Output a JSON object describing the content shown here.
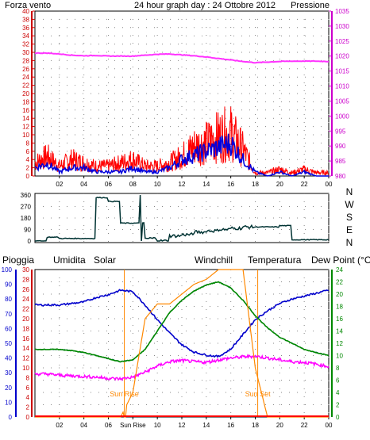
{
  "top_chart": {
    "title": "24 hour graph day : 24 Ottobre 2012",
    "left_label": "Forza vento",
    "right_label": "Pressione",
    "y_left_ticks": [
      "0",
      "2",
      "4",
      "6",
      "8",
      "10",
      "12",
      "14",
      "16",
      "18",
      "20",
      "22",
      "24",
      "26",
      "28",
      "30",
      "32",
      "34",
      "36",
      "38",
      "40"
    ],
    "y_right_ticks": [
      "980",
      "985",
      "990",
      "995",
      "1000",
      "1005",
      "1010",
      "1015",
      "1020",
      "1025",
      "1030",
      "1035"
    ],
    "x_ticks": [
      "02",
      "04",
      "06",
      "08",
      "10",
      "12",
      "14",
      "16",
      "18",
      "20",
      "22",
      "00"
    ]
  },
  "direction_chart": {
    "y_ticks": [
      "360",
      "270",
      "180",
      "90",
      "0"
    ],
    "compass": [
      "N",
      "W",
      "S",
      "E",
      "N"
    ]
  },
  "bottom_chart": {
    "legend": [
      "Pioggia",
      "Umidita",
      "Solar",
      "Windchill",
      "Temperatura",
      "Dew Point (°C)"
    ],
    "y_left_outer": [
      "0",
      "10",
      "20",
      "30",
      "40",
      "50",
      "60",
      "70",
      "80",
      "90",
      "100"
    ],
    "y_left_inner": [
      "0",
      "2",
      "4",
      "6",
      "8",
      "10",
      "12",
      "14",
      "16",
      "18",
      "20",
      "22",
      "24",
      "26",
      "28",
      "30"
    ],
    "y_right": [
      "0",
      "2",
      "4",
      "6",
      "8",
      "10",
      "12",
      "14",
      "16",
      "18",
      "20",
      "22",
      "24"
    ],
    "x_ticks": [
      "02",
      "04",
      "06",
      "Sun Rise",
      "10",
      "12",
      "14",
      "16",
      "18",
      "20",
      "22",
      "00"
    ],
    "sunrise_label": "Sun Rise",
    "sunset_label": "Sun Set"
  },
  "colors": {
    "axis_red": "#cc0000",
    "axis_magenta": "#cc00cc",
    "wind": "#ff0000",
    "wind_avg": "#0000dd",
    "pressure": "#ff33ff",
    "direction": "#003333",
    "humidity": "#0000cc",
    "solar": "#ff8800",
    "windchill": "#006666",
    "temperature": "#008800",
    "dewpoint": "#ff00ff",
    "rain": "#ff0000",
    "title": "#000080",
    "grid_dot": "#888888"
  },
  "chart_data": [
    {
      "type": "line",
      "title": "24 hour graph day : 24 Ottobre 2012",
      "x": [
        0,
        1,
        2,
        3,
        4,
        5,
        6,
        7,
        8,
        9,
        10,
        11,
        12,
        13,
        14,
        15,
        16,
        17,
        18,
        19,
        20,
        21,
        22,
        23,
        24
      ],
      "series": [
        {
          "name": "Forza vento",
          "axis": "left",
          "values": [
            4,
            6,
            3,
            5,
            4,
            3,
            3,
            4,
            5,
            3,
            3,
            4,
            6,
            9,
            10,
            12,
            13,
            8,
            1,
            1,
            2,
            1,
            2,
            1,
            1
          ]
        },
        {
          "series_role": "average",
          "axis": "left",
          "values": [
            2,
            3,
            1,
            2,
            2,
            1,
            1,
            1,
            2,
            1,
            1,
            2,
            4,
            5,
            6,
            7,
            8,
            4,
            1,
            0,
            1,
            0,
            1,
            0,
            0
          ]
        },
        {
          "name": "Pressione",
          "axis": "right",
          "values": [
            1021,
            1021,
            1020.7,
            1020.3,
            1020.1,
            1020.2,
            1020,
            1020,
            1020,
            1020.3,
            1020.6,
            1020.7,
            1020.4,
            1020.1,
            1019.7,
            1019.2,
            1018.7,
            1018.2,
            1017.8,
            1018,
            1018.2,
            1018.3,
            1018.3,
            1018.3,
            1018.2
          ]
        }
      ],
      "ylim_left": [
        0,
        40
      ],
      "ylim_right": [
        980,
        1035
      ]
    },
    {
      "type": "line",
      "x": [
        0,
        1,
        2,
        3,
        4,
        5,
        6,
        7,
        8,
        9,
        10,
        11,
        12,
        13,
        14,
        15,
        16,
        17,
        18,
        19,
        20,
        21,
        22,
        23,
        24
      ],
      "series": [
        {
          "values": [
            0,
            30,
            20,
            20,
            20,
            340,
            310,
            140,
            140,
            20,
            0,
            40,
            50,
            70,
            80,
            90,
            100,
            110,
            110,
            110,
            120,
            10,
            10,
            10,
            10
          ]
        }
      ],
      "ylim": [
        0,
        360
      ]
    },
    {
      "type": "line",
      "x": [
        0,
        1,
        2,
        3,
        4,
        5,
        6,
        7,
        8,
        9,
        10,
        11,
        12,
        13,
        14,
        15,
        16,
        17,
        18,
        19,
        20,
        21,
        22,
        23,
        24
      ],
      "series": [
        {
          "name": "Umidita",
          "axis": "left_outer",
          "values": [
            76,
            76,
            76,
            77,
            78,
            81,
            83,
            86,
            85,
            76,
            66,
            57,
            49,
            44,
            42,
            41,
            46,
            56,
            66,
            72,
            77,
            80,
            82,
            84,
            86
          ]
        },
        {
          "name": "Solar",
          "axis": "left_inner",
          "values": [
            0,
            0,
            0,
            0,
            0,
            0,
            0,
            0,
            5,
            20,
            23,
            23,
            25,
            27,
            28,
            30,
            30,
            30,
            10,
            0,
            0,
            0,
            0,
            0,
            0
          ]
        },
        {
          "name": "Temperatura",
          "axis": "right",
          "values": [
            11,
            11,
            11,
            10.8,
            10.5,
            10,
            9.5,
            9,
            9.3,
            11,
            14,
            17,
            19,
            20.5,
            21.5,
            22,
            21,
            19,
            16.5,
            14.5,
            13,
            12,
            11,
            10.5,
            10
          ]
        },
        {
          "name": "Windchill",
          "axis": "right",
          "values": [
            11,
            11,
            11,
            10.8,
            10.5,
            10,
            9.5,
            9,
            9.3,
            11,
            14,
            17,
            19,
            20.5,
            21.5,
            22,
            21,
            19,
            16.5,
            14.5,
            13,
            12,
            11,
            10.5,
            10
          ]
        },
        {
          "name": "Dew Point (°C)",
          "axis": "right",
          "values": [
            7,
            7,
            6.8,
            6.7,
            6.6,
            6.5,
            6.3,
            6.2,
            6.5,
            7.3,
            8.3,
            9,
            9.2,
            9,
            8.9,
            9.3,
            9.6,
            9.8,
            9.9,
            9.6,
            9.3,
            9,
            8.9,
            8.6,
            8.2
          ]
        },
        {
          "name": "Pioggia",
          "axis": "left_inner",
          "values": [
            0,
            0,
            0,
            0,
            0,
            0,
            0,
            0,
            0,
            0,
            0,
            0,
            0,
            0,
            0,
            0,
            0,
            0,
            0,
            0,
            0,
            0,
            0,
            0,
            0
          ]
        }
      ],
      "ylim_left_outer": [
        0,
        100
      ],
      "ylim_left_inner": [
        0,
        30
      ],
      "ylim_right": [
        0,
        24
      ],
      "annotations": [
        "Sun Rise",
        "Sun Set"
      ]
    }
  ]
}
